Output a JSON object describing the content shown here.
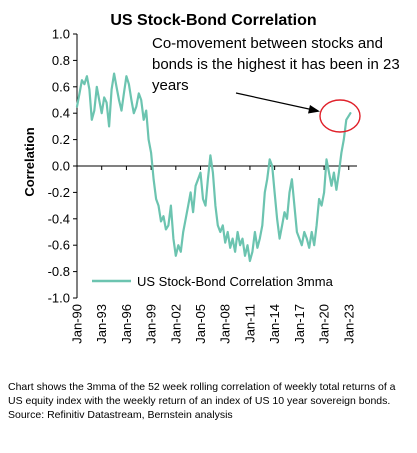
{
  "chart_data": {
    "type": "line",
    "title": "US Stock-Bond Correlation",
    "ylabel": "Correlation",
    "xlabel": "",
    "ylim": [
      -1.0,
      1.0
    ],
    "yticks": [
      "1.0",
      "0.8",
      "0.6",
      "0.4",
      "0.2",
      "0.0",
      "-0.2",
      "-0.4",
      "-0.6",
      "-0.8",
      "-1.0"
    ],
    "xlim": [
      1990,
      2024
    ],
    "xticks": [
      {
        "label": "Jan-90",
        "x": 1990
      },
      {
        "label": "Jan-93",
        "x": 1993
      },
      {
        "label": "Jan-96",
        "x": 1996
      },
      {
        "label": "Jan-99",
        "x": 1999
      },
      {
        "label": "Jan-02",
        "x": 2002
      },
      {
        "label": "Jan-05",
        "x": 2005
      },
      {
        "label": "Jan-08",
        "x": 2008
      },
      {
        "label": "Jan-11",
        "x": 2011
      },
      {
        "label": "Jan-14",
        "x": 2014
      },
      {
        "label": "Jan-17",
        "x": 2017
      },
      {
        "label": "Jan-20",
        "x": 2020
      },
      {
        "label": "Jan-23",
        "x": 2023
      }
    ],
    "grid": false,
    "legend_position": "bottom",
    "series": [
      {
        "name": "US Stock-Bond Correlation 3mma",
        "color": "#6cc4b0",
        "x": [
          1990.0,
          1990.3,
          1990.6,
          1990.9,
          1991.2,
          1991.5,
          1991.8,
          1992.1,
          1992.4,
          1992.7,
          1993.0,
          1993.3,
          1993.6,
          1993.9,
          1994.2,
          1994.5,
          1994.8,
          1995.1,
          1995.4,
          1995.7,
          1996.0,
          1996.3,
          1996.6,
          1996.9,
          1997.2,
          1997.5,
          1997.8,
          1998.1,
          1998.4,
          1998.7,
          1999.0,
          1999.3,
          1999.6,
          1999.9,
          2000.2,
          2000.5,
          2000.8,
          2001.1,
          2001.4,
          2001.7,
          2002.0,
          2002.3,
          2002.6,
          2002.9,
          2003.2,
          2003.5,
          2003.8,
          2004.1,
          2004.4,
          2004.7,
          2005.0,
          2005.3,
          2005.6,
          2005.9,
          2006.2,
          2006.5,
          2006.8,
          2007.1,
          2007.4,
          2007.7,
          2008.0,
          2008.3,
          2008.6,
          2008.9,
          2009.2,
          2009.5,
          2009.8,
          2010.1,
          2010.4,
          2010.7,
          2011.0,
          2011.3,
          2011.6,
          2011.9,
          2012.2,
          2012.5,
          2012.8,
          2013.1,
          2013.4,
          2013.7,
          2014.0,
          2014.3,
          2014.6,
          2014.9,
          2015.2,
          2015.5,
          2015.8,
          2016.1,
          2016.4,
          2016.7,
          2017.0,
          2017.3,
          2017.6,
          2017.9,
          2018.2,
          2018.5,
          2018.8,
          2019.1,
          2019.4,
          2019.7,
          2020.0,
          2020.3,
          2020.6,
          2020.9,
          2021.2,
          2021.5,
          2021.8,
          2022.1,
          2022.4,
          2022.7,
          2023.0,
          2023.2
        ],
        "y": [
          0.45,
          0.55,
          0.65,
          0.62,
          0.68,
          0.58,
          0.35,
          0.42,
          0.6,
          0.5,
          0.4,
          0.52,
          0.48,
          0.3,
          0.58,
          0.7,
          0.6,
          0.5,
          0.42,
          0.55,
          0.68,
          0.62,
          0.5,
          0.4,
          0.45,
          0.55,
          0.5,
          0.35,
          0.42,
          0.2,
          0.1,
          -0.1,
          -0.25,
          -0.3,
          -0.42,
          -0.38,
          -0.48,
          -0.45,
          -0.3,
          -0.55,
          -0.68,
          -0.6,
          -0.65,
          -0.5,
          -0.4,
          -0.3,
          -0.2,
          -0.35,
          -0.15,
          -0.1,
          -0.05,
          -0.25,
          -0.3,
          -0.1,
          0.08,
          -0.05,
          -0.3,
          -0.45,
          -0.5,
          -0.45,
          -0.58,
          -0.5,
          -0.62,
          -0.55,
          -0.65,
          -0.5,
          -0.6,
          -0.55,
          -0.68,
          -0.6,
          -0.72,
          -0.65,
          -0.5,
          -0.62,
          -0.55,
          -0.45,
          -0.2,
          -0.1,
          0.05,
          0.0,
          -0.2,
          -0.4,
          -0.55,
          -0.45,
          -0.35,
          -0.4,
          -0.2,
          -0.1,
          -0.3,
          -0.5,
          -0.55,
          -0.6,
          -0.5,
          -0.55,
          -0.62,
          -0.5,
          -0.6,
          -0.45,
          -0.25,
          -0.3,
          -0.2,
          0.05,
          -0.05,
          -0.15,
          -0.05,
          -0.18,
          -0.05,
          0.1,
          0.2,
          0.35,
          0.38,
          0.4
        ]
      }
    ]
  },
  "annotation": {
    "text": "Co-movement between stocks and bonds is the highest it has been in 23 years"
  },
  "footer": {
    "note": "Chart shows the 3mma of the 52 week rolling correlation of weekly total returns of a US equity index with the weekly return of an index of US 10 year sovereign bonds.",
    "source": "Source: Refinitiv Datastream, Bernstein analysis"
  }
}
